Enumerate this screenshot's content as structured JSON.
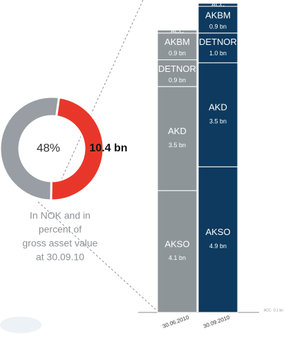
{
  "chart_data": [
    {
      "type": "donut",
      "values": [
        48,
        52
      ],
      "value_labels": [
        "48%",
        null
      ],
      "colors": [
        "#e8372a",
        "#989ea3"
      ],
      "center_label": "10.4 bn",
      "caption": [
        "In NOK and in",
        "percent of",
        "gross asset value",
        "at 30.09.10"
      ]
    },
    {
      "type": "stacked_bar",
      "categories": [
        "30.06.2010",
        "30.09.2010"
      ],
      "colors": [
        "#8e9599",
        "#0d3a5e"
      ],
      "series": [
        {
          "name": "AKSO",
          "values": [
            4.1,
            4.9
          ],
          "value_labels": [
            "4.1 bn",
            "4.9 bn"
          ]
        },
        {
          "name": "AKD",
          "values": [
            3.5,
            3.5
          ],
          "value_labels": [
            "3.5 bn",
            "3.5 bn"
          ]
        },
        {
          "name": "DETNOR",
          "values": [
            0.9,
            1.0
          ],
          "value_labels": [
            "0.9 bn",
            "1.0 bn"
          ]
        },
        {
          "name": "AKBM",
          "values": [
            0.9,
            0.9
          ],
          "value_labels": [
            "0.9 bn",
            "0.9 bn"
          ]
        },
        {
          "name": "ACC",
          "values": [
            0.1,
            0.1
          ],
          "value_labels": [
            null,
            "0.1 bn"
          ]
        }
      ]
    }
  ]
}
